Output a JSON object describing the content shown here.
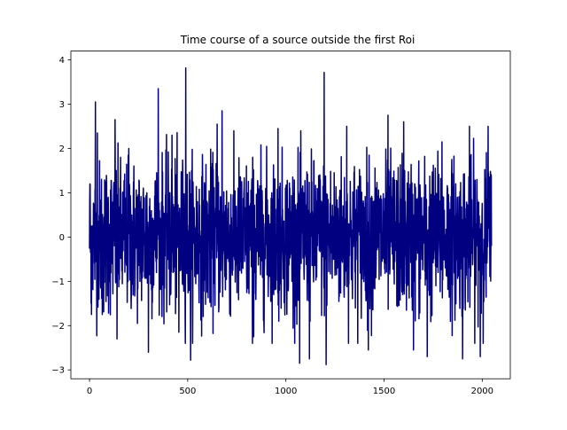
{
  "chart_data": {
    "type": "line",
    "title": "Time course of a source outside the first Roi",
    "xlabel": "",
    "ylabel": "",
    "xlim": [
      -95,
      2143
    ],
    "ylim": [
      -3.2,
      4.2
    ],
    "x_ticks": [
      0,
      500,
      1000,
      1500,
      2000
    ],
    "x_tick_labels": [
      "0",
      "500",
      "1000",
      "1500",
      "2000"
    ],
    "y_ticks": [
      -3,
      -2,
      -1,
      0,
      1,
      2,
      3,
      4
    ],
    "y_tick_labels": [
      "−3",
      "−2",
      "−1",
      "0",
      "1",
      "2",
      "3",
      "4"
    ],
    "grid": false,
    "legend": "none",
    "series": [
      {
        "color": "#000080",
        "n_points": 2048,
        "x_start": 0,
        "x_end": 2047,
        "notable_points": [
          {
            "x": 2,
            "y": 1.2
          },
          {
            "x": 8,
            "y": -1.5
          },
          {
            "x": 30,
            "y": 3.05
          },
          {
            "x": 40,
            "y": 2.35
          },
          {
            "x": 65,
            "y": -1.75
          },
          {
            "x": 130,
            "y": 2.65
          },
          {
            "x": 140,
            "y": -2.3
          },
          {
            "x": 200,
            "y": 2.0
          },
          {
            "x": 300,
            "y": -2.6
          },
          {
            "x": 350,
            "y": 3.35
          },
          {
            "x": 420,
            "y": 2.3
          },
          {
            "x": 455,
            "y": -2.15
          },
          {
            "x": 490,
            "y": 3.82
          },
          {
            "x": 515,
            "y": -2.78
          },
          {
            "x": 650,
            "y": 2.55
          },
          {
            "x": 675,
            "y": 2.85
          },
          {
            "x": 830,
            "y": -2.4
          },
          {
            "x": 960,
            "y": 2.45
          },
          {
            "x": 1070,
            "y": -2.85
          },
          {
            "x": 1120,
            "y": -2.75
          },
          {
            "x": 1195,
            "y": 3.72
          },
          {
            "x": 1205,
            "y": -2.88
          },
          {
            "x": 1310,
            "y": 2.5
          },
          {
            "x": 1420,
            "y": -2.55
          },
          {
            "x": 1520,
            "y": 2.75
          },
          {
            "x": 1600,
            "y": 2.6
          },
          {
            "x": 1650,
            "y": -2.55
          },
          {
            "x": 1720,
            "y": -2.7
          },
          {
            "x": 1795,
            "y": 2.15
          },
          {
            "x": 1900,
            "y": -2.75
          },
          {
            "x": 1935,
            "y": 2.5
          },
          {
            "x": 1990,
            "y": -2.7
          },
          {
            "x": 2030,
            "y": 2.5
          },
          {
            "x": 2047,
            "y": -0.2
          }
        ]
      }
    ]
  }
}
